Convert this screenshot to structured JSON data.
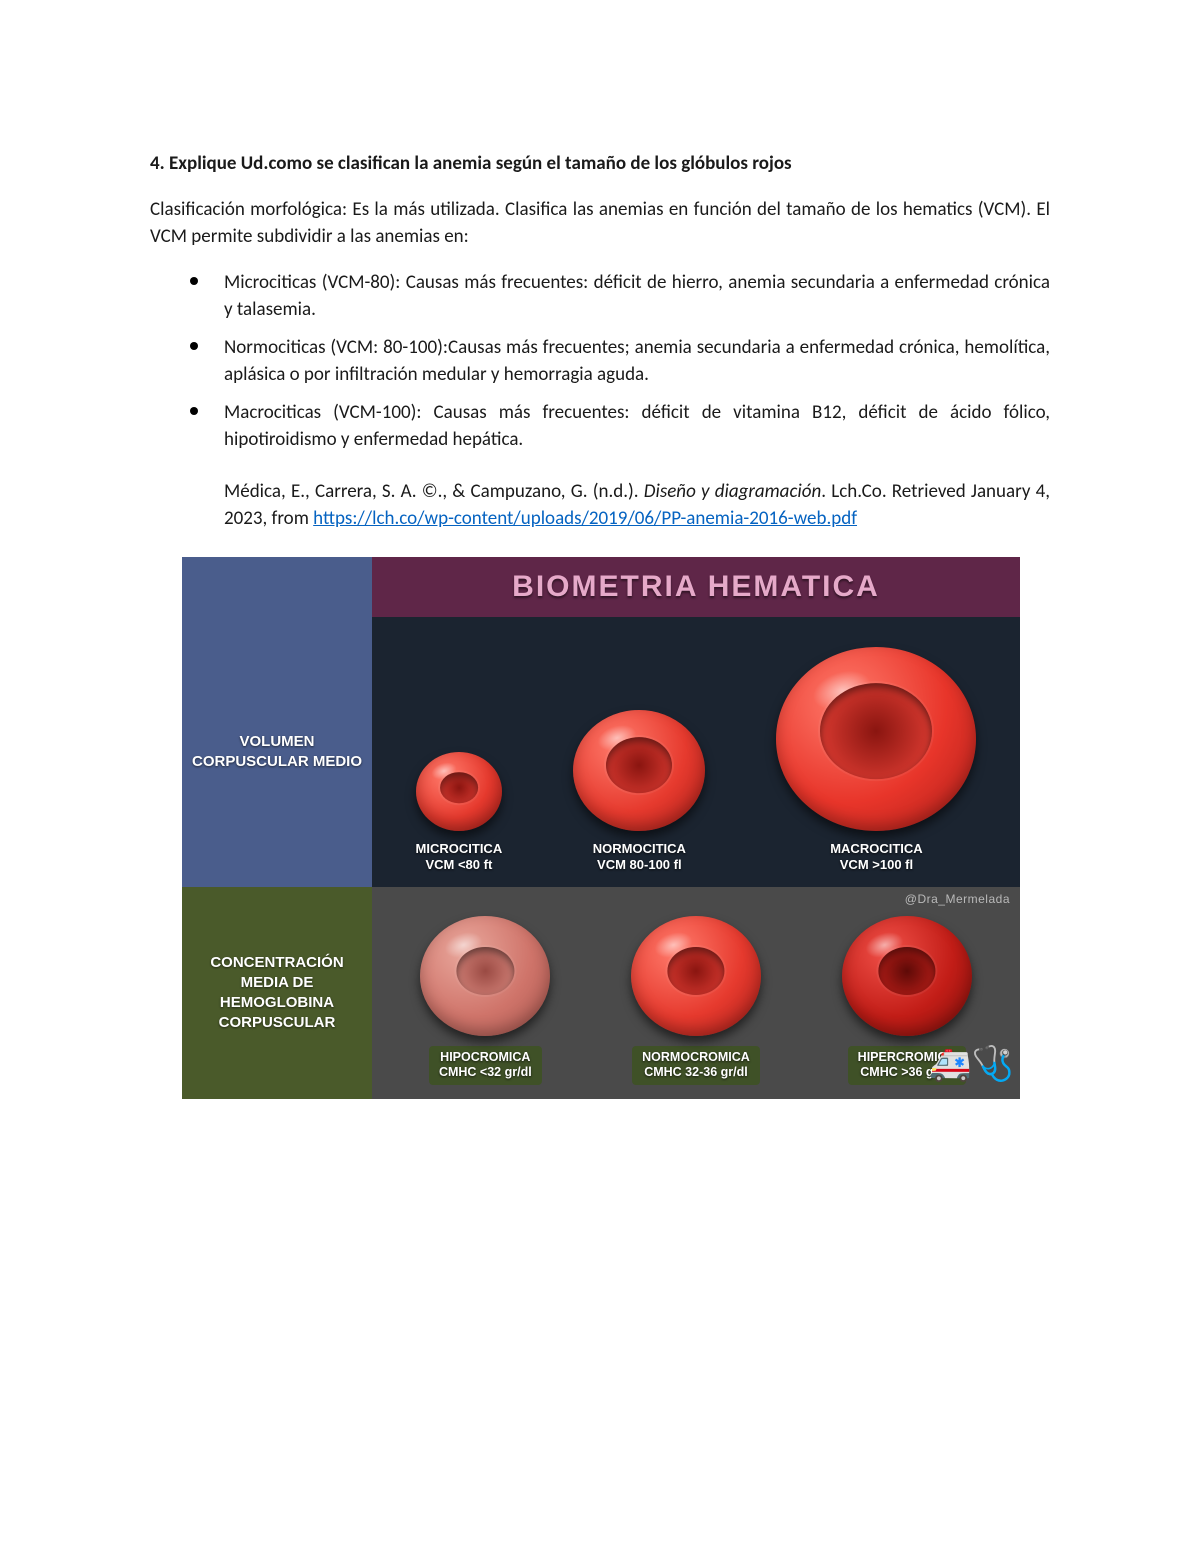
{
  "heading": "4. Explique Ud.como se clasifican la anemia según el tamaño de los glóbulos rojos",
  "intro": "Clasificación morfológica: Es la más utilizada. Clasifica las anemias en función del tamaño de los hematics (VCM). El VCM permite subdividir a las anemias en:",
  "bullets": {
    "b1": "Microciticas (VCM-80): Causas más frecuentes: déficit de hierro, anemia secundaria a enfermedad crónica y talasemia.",
    "b2": "Normociticas (VCM: 80-100):Causas más frecuentes; anemia secundaria a enfermedad crónica, hemolítica, aplásica o por infiltración medular y hemorragia aguda.",
    "b3": "Macrociticas (VCM-100): Causas más frecuentes: déficit de vitamina B12, déficit de ácido fólico, hipotiroidismo y enfermedad hepática."
  },
  "citation": {
    "pre": "Médica, E., Carrera, S. A. ©., & Campuzano, G. (n.d.). ",
    "italic": "Diseño y diagramación",
    "mid": ". Lch.Co. Retrieved January 4, 2023, from ",
    "link_text": "https://lch.co/wp-content/uploads/2019/06/PP-anemia-2016-web.pdf",
    "link_href": "https://lch.co/wp-content/uploads/2019/06/PP-anemia-2016-web.pdf"
  },
  "infographic": {
    "title": "BIOMETRIA HEMATICA",
    "watermark": "@Dra_Mermelada",
    "row1": {
      "side_label": "VOLUMEN CORPUSCULAR MEDIO",
      "side_bg": "#4a5d8c",
      "panel_bg": "#1b2430",
      "cells": {
        "c1": {
          "size": 86,
          "bg": "radial-gradient(circle at 35% 30%, #ff7a6b, #e63a2e 55%, #a81d18)",
          "dent": "radial-gradient(circle at 50% 50%, #8a1510, #c9322a 70%)",
          "name": "MICROCITICA",
          "value": "VCM <80 ft"
        },
        "c2": {
          "size": 132,
          "bg": "radial-gradient(circle at 35% 30%, #ff7a6b, #e63a2e 55%, #a81d18)",
          "dent": "radial-gradient(circle at 50% 50%, #8a1510, #c9322a 70%)",
          "name": "NORMOCITICA",
          "value": "VCM 80-100 fl",
          "dent_w": "50%",
          "dent_h": "46%"
        },
        "c3": {
          "size": 200,
          "bg": "radial-gradient(circle at 35% 30%, #ff7a6b, #e8352a 55%, #a81d18)",
          "dent": "radial-gradient(circle at 50% 50%, #8a1510, #d0362d 70%)",
          "name": "MACROCITICA",
          "value": "VCM >100 fl",
          "dent_w": "56%",
          "dent_h": "52%"
        }
      }
    },
    "row2": {
      "side_label": "CONCENTRACIÓN MEDIA DE HEMOGLOBINA CORPUSCULAR",
      "side_bg": "#4a5a2a",
      "panel_bg": "#4a4a4a",
      "cells": {
        "c1": {
          "size": 130,
          "bg": "radial-gradient(circle at 35% 30%, #e9a79c, #cf746a 55%, #a9564e)",
          "dent": "radial-gradient(circle at 50% 50%, #9a4a43, #c9786f 70%)",
          "name": "HIPOCROMICA",
          "value": "CMHC <32 gr/dl"
        },
        "c2": {
          "size": 130,
          "bg": "radial-gradient(circle at 35% 30%, #ff7a6b, #e63a2e 55%, #a81d18)",
          "dent": "radial-gradient(circle at 50% 50%, #8a1510, #c9322a 70%)",
          "name": "NORMOCROMICA",
          "value": "CMHC 32-36 gr/dl"
        },
        "c3": {
          "size": 130,
          "bg": "radial-gradient(circle at 35% 30%, #f05048, #c21d17 55%, #7e0f0b)",
          "dent": "radial-gradient(circle at 50% 50%, #5e0a07, #a61a15 70%)",
          "name": "HIPERCROMICA",
          "value": "CMHC >36 gr/dl"
        }
      }
    },
    "colors": {
      "title_bg": "#5f2648",
      "title_fg": "#e6a9c9",
      "link": "#0563c1"
    }
  }
}
